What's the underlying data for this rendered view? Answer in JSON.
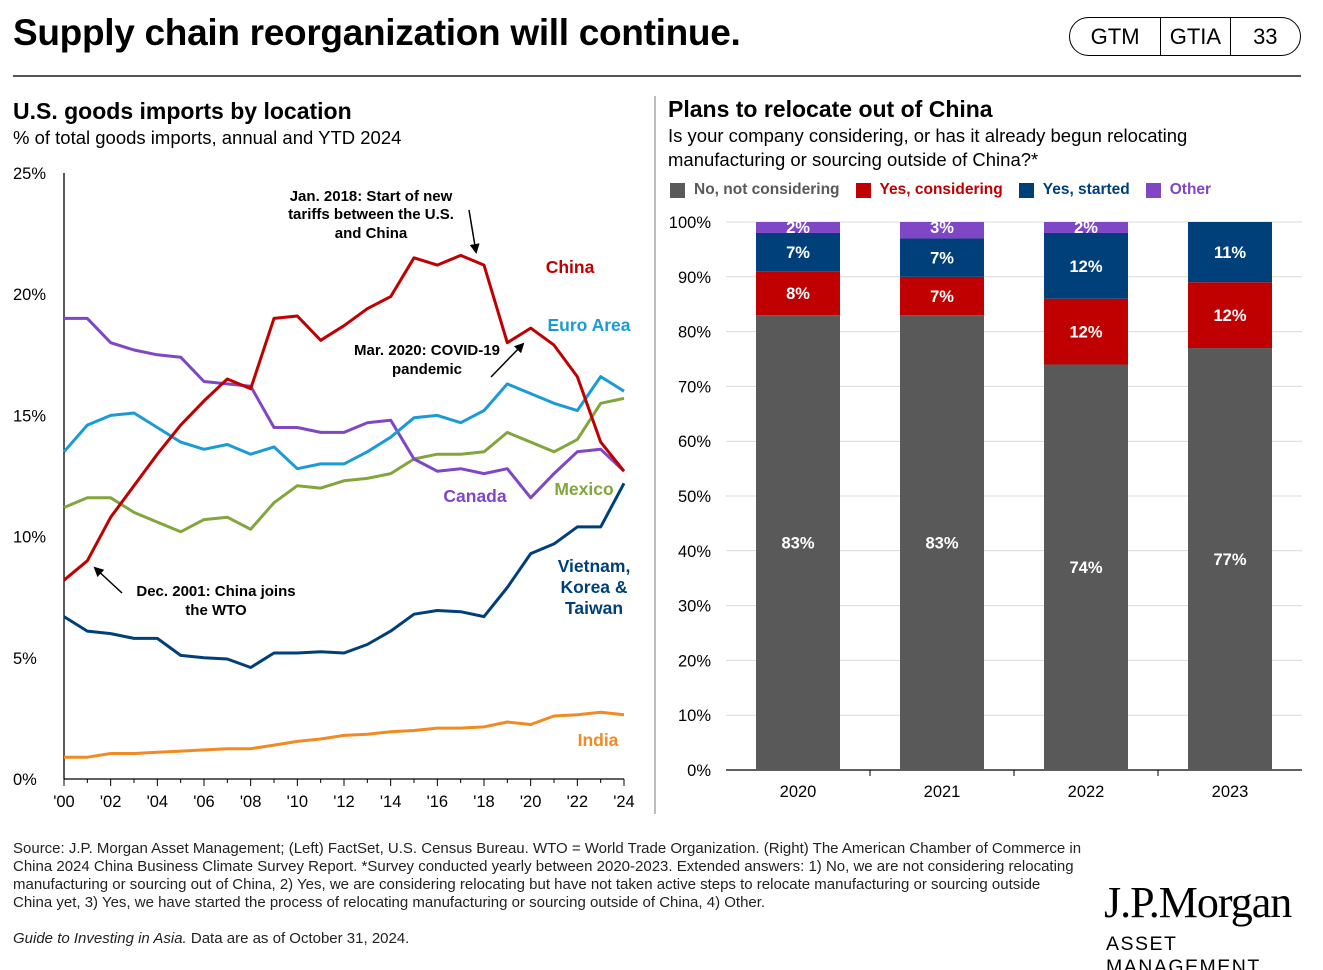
{
  "header": {
    "title": "Supply chain reorganization will continue.",
    "badges": [
      "GTM",
      "GTIA",
      "33"
    ]
  },
  "left_panel": {
    "title": "U.S. goods imports by location",
    "subtitle": "% of total goods imports, annual and YTD 2024",
    "annotations": {
      "tariffs_line1": "Jan. 2018: Start of new",
      "tariffs_line2": "tariffs between the U.S.",
      "tariffs_line3": "and China",
      "covid_line1": "Mar. 2020: COVID-19",
      "covid_line2": "pandemic",
      "wto_line1": "Dec. 2001: China joins",
      "wto_line2": "the WTO"
    }
  },
  "right_panel": {
    "title": "Plans to relocate out of China",
    "question_line1": "Is your company considering, or has it already begun relocating",
    "question_line2": "manufacturing or sourcing outside of China?*",
    "legend": [
      {
        "label": "No, not considering",
        "color": "#595959"
      },
      {
        "label": "Yes, considering",
        "color": "#c00000"
      },
      {
        "label": "Yes, started",
        "color": "#00407a"
      },
      {
        "label": "Other",
        "color": "#7f46c6"
      }
    ]
  },
  "chart_data": [
    {
      "type": "line",
      "title": "U.S. goods imports by location",
      "ylabel": "% of total goods imports",
      "x": [
        2000,
        2001,
        2002,
        2003,
        2004,
        2005,
        2006,
        2007,
        2008,
        2009,
        2010,
        2011,
        2012,
        2013,
        2014,
        2015,
        2016,
        2017,
        2018,
        2019,
        2020,
        2021,
        2022,
        2023,
        2024
      ],
      "xtick_labels": [
        "'00",
        "'02",
        "'04",
        "'06",
        "'08",
        "'10",
        "'12",
        "'14",
        "'16",
        "'18",
        "'20",
        "'22",
        "'24"
      ],
      "ytick_labels": [
        "0%",
        "5%",
        "10%",
        "15%",
        "20%",
        "25%"
      ],
      "ylim": [
        0,
        25
      ],
      "series": [
        {
          "name": "China",
          "label_lines": [
            "China"
          ],
          "color": "#c00000",
          "values": [
            8.2,
            9.0,
            10.8,
            12.1,
            13.4,
            14.6,
            15.6,
            16.5,
            16.1,
            19.0,
            19.1,
            18.1,
            18.7,
            19.4,
            19.9,
            21.5,
            21.2,
            21.6,
            21.2,
            18.0,
            18.6,
            17.9,
            16.6,
            13.9,
            12.7
          ]
        },
        {
          "name": "Euro Area",
          "label_lines": [
            "Euro Area"
          ],
          "color": "#1a9ad6",
          "values": [
            13.5,
            14.6,
            15.0,
            15.1,
            14.5,
            13.9,
            13.6,
            13.8,
            13.4,
            13.7,
            12.8,
            13.0,
            13.0,
            13.5,
            14.1,
            14.9,
            15.0,
            14.7,
            15.2,
            16.3,
            15.9,
            15.5,
            15.2,
            16.6,
            16.0
          ]
        },
        {
          "name": "Canada",
          "label_lines": [
            "Canada"
          ],
          "color": "#7f46c6",
          "values": [
            19.0,
            19.0,
            18.0,
            17.7,
            17.5,
            17.4,
            16.4,
            16.3,
            16.2,
            14.5,
            14.5,
            14.3,
            14.3,
            14.7,
            14.8,
            13.2,
            12.7,
            12.8,
            12.6,
            12.8,
            11.6,
            12.6,
            13.5,
            13.6,
            12.7
          ]
        },
        {
          "name": "Mexico",
          "label_lines": [
            "Mexico"
          ],
          "color": "#82a53c",
          "values": [
            11.2,
            11.6,
            11.6,
            11.0,
            10.6,
            10.2,
            10.7,
            10.8,
            10.3,
            11.4,
            12.1,
            12.0,
            12.3,
            12.4,
            12.6,
            13.2,
            13.4,
            13.4,
            13.5,
            14.3,
            13.9,
            13.5,
            14.0,
            15.5,
            15.7
          ]
        },
        {
          "name": "Vietnam, Korea & Taiwan",
          "label_lines": [
            "Vietnam,",
            "Korea &",
            "Taiwan"
          ],
          "color": "#00407a",
          "values": [
            6.7,
            6.1,
            6.0,
            5.8,
            5.8,
            5.1,
            5.0,
            4.95,
            4.6,
            5.2,
            5.2,
            5.25,
            5.2,
            5.55,
            6.1,
            6.8,
            6.95,
            6.9,
            6.7,
            7.9,
            9.3,
            9.7,
            10.4,
            10.4,
            12.2
          ]
        },
        {
          "name": "India",
          "label_lines": [
            "India"
          ],
          "color": "#f18a22",
          "values": [
            0.9,
            0.9,
            1.05,
            1.05,
            1.1,
            1.15,
            1.2,
            1.25,
            1.25,
            1.4,
            1.55,
            1.65,
            1.8,
            1.85,
            1.95,
            2.0,
            2.1,
            2.1,
            2.15,
            2.35,
            2.25,
            2.6,
            2.65,
            2.75,
            2.65
          ]
        }
      ]
    },
    {
      "type": "bar",
      "stacked": true,
      "title": "Plans to relocate out of China",
      "categories": [
        "2020",
        "2021",
        "2022",
        "2023"
      ],
      "ytick_labels": [
        "0%",
        "10%",
        "20%",
        "30%",
        "40%",
        "50%",
        "60%",
        "70%",
        "80%",
        "90%",
        "100%"
      ],
      "ylim": [
        0,
        100
      ],
      "series": [
        {
          "name": "No, not considering",
          "color": "#595959",
          "values": [
            83,
            83,
            74,
            77
          ],
          "labels": [
            "83%",
            "83%",
            "74%",
            "77%"
          ]
        },
        {
          "name": "Yes, considering",
          "color": "#c00000",
          "values": [
            8,
            7,
            12,
            12
          ],
          "labels": [
            "8%",
            "7%",
            "12%",
            "12%"
          ]
        },
        {
          "name": "Yes, started",
          "color": "#00407a",
          "values": [
            7,
            7,
            12,
            11
          ],
          "labels": [
            "7%",
            "7%",
            "12%",
            "11%"
          ]
        },
        {
          "name": "Other",
          "color": "#7f46c6",
          "values": [
            2,
            3,
            2,
            0
          ],
          "labels": [
            "2%",
            "3%",
            "2%",
            ""
          ]
        }
      ]
    }
  ],
  "footer": {
    "source": "Source: J.P. Morgan Asset Management; (Left) FactSet, U.S. Census Bureau. WTO = World Trade Organization. (Right) The American Chamber of Commerce in China 2024 China Business Climate Survey Report. *Survey conducted yearly between 2020-2023. Extended answers: 1) No, we are not considering relocating manufacturing or sourcing out of China, 2) Yes, we are considering relocating but have not taken active steps to relocate manufacturing or sourcing outside China yet, 3) Yes, we have started the process of relocating manufacturing or sourcing outside of China, 4) Other.",
    "guide": "Guide to Investing in Asia.",
    "asof": " Data are as of October 31, 2024."
  },
  "logo": {
    "name": "J.P.Morgan",
    "sub": "ASSET MANAGEMENT"
  }
}
